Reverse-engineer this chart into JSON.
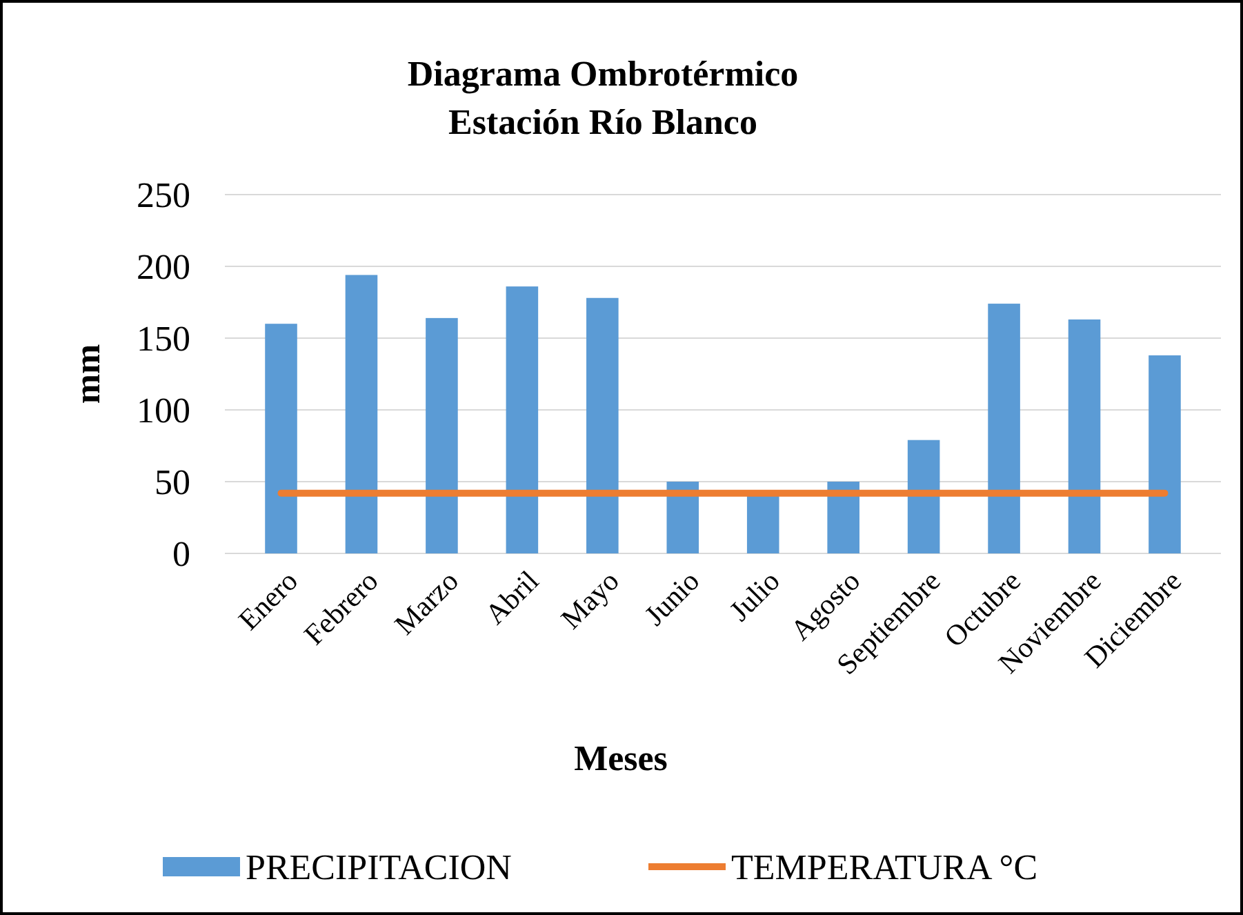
{
  "chart_data": {
    "type": "bar",
    "title": "Diagrama Ombrotérmico\nEstación Río Blanco",
    "xlabel": "Meses",
    "ylabel": "mm",
    "categories": [
      "Enero",
      "Febrero",
      "Marzo",
      "Abril",
      "Mayo",
      "Junio",
      "Julio",
      "Agosto",
      "Septiembre",
      "Octubre",
      "Noviembre",
      "Diciembre"
    ],
    "series": [
      {
        "name": "PRECIPITACION",
        "color": "#5b9bd5",
        "values": [
          160,
          194,
          164,
          186,
          178,
          50,
          40,
          50,
          79,
          174,
          163,
          138
        ]
      },
      {
        "name": "TEMPERATURA °C",
        "type": "line",
        "color": "#ed7d31",
        "values": [
          42,
          42,
          42,
          42,
          42,
          42,
          42,
          42,
          42,
          42,
          42,
          42
        ]
      }
    ],
    "ylim": [
      0,
      250
    ],
    "yticks": [
      0,
      50,
      100,
      150,
      200,
      250
    ],
    "grid": "y",
    "legend": "bottom",
    "marker": "none",
    "line_style": "solid"
  }
}
